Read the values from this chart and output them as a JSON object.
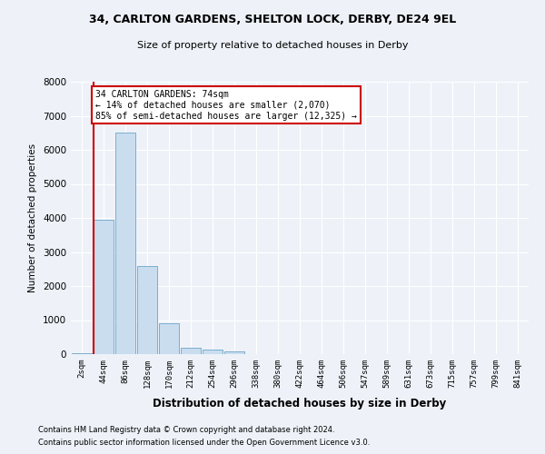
{
  "title1": "34, CARLTON GARDENS, SHELTON LOCK, DERBY, DE24 9EL",
  "title2": "Size of property relative to detached houses in Derby",
  "xlabel": "Distribution of detached houses by size in Derby",
  "ylabel": "Number of detached properties",
  "bar_labels": [
    "2sqm",
    "44sqm",
    "86sqm",
    "128sqm",
    "170sqm",
    "212sqm",
    "254sqm",
    "296sqm",
    "338sqm",
    "380sqm",
    "422sqm",
    "464sqm",
    "506sqm",
    "547sqm",
    "589sqm",
    "631sqm",
    "673sqm",
    "715sqm",
    "757sqm",
    "799sqm",
    "841sqm"
  ],
  "bar_values": [
    30,
    3950,
    6500,
    2600,
    900,
    200,
    130,
    80,
    0,
    0,
    0,
    0,
    0,
    0,
    0,
    0,
    0,
    0,
    0,
    0,
    0
  ],
  "bar_color": "#c9ddef",
  "bar_edge_color": "#7aaece",
  "annotation_text": "34 CARLTON GARDENS: 74sqm\n← 14% of detached houses are smaller (2,070)\n85% of semi-detached houses are larger (12,325) →",
  "annotation_box_color": "#ffffff",
  "annotation_border_color": "#cc0000",
  "vline_color": "#cc0000",
  "ylim": [
    0,
    8000
  ],
  "yticks": [
    0,
    1000,
    2000,
    3000,
    4000,
    5000,
    6000,
    7000,
    8000
  ],
  "footer1": "Contains HM Land Registry data © Crown copyright and database right 2024.",
  "footer2": "Contains public sector information licensed under the Open Government Licence v3.0.",
  "background_color": "#eef2f8",
  "plot_background": "#eef2f8"
}
